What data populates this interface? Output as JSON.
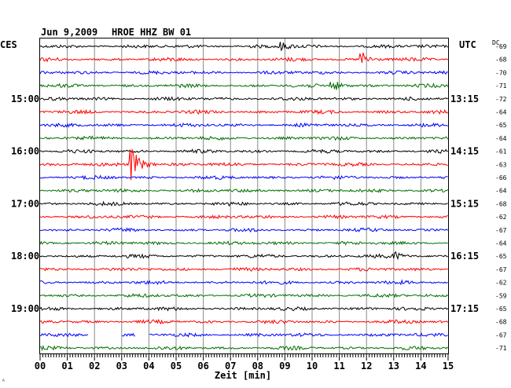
{
  "header": {
    "date": "Jun 9,2009",
    "station": "HROE HHZ BW 01",
    "left_zone": "CES",
    "right_zone": "UTC",
    "dc_label": "DC"
  },
  "chart_data": {
    "type": "line",
    "title": "Jun 9,2009   HROE HHZ BW 01",
    "xlabel": "Zeit [min]",
    "xlim": [
      0,
      15
    ],
    "x_ticks": [
      "00",
      "01",
      "02",
      "03",
      "04",
      "05",
      "06",
      "07",
      "08",
      "09",
      "10",
      "11",
      "12",
      "13",
      "14",
      "15"
    ],
    "trace_count": 24,
    "trace_colors": [
      "#000000",
      "#ff0000",
      "#0000ff",
      "#007000"
    ],
    "left_time_labels": [
      {
        "trace": 4,
        "label": "15:00"
      },
      {
        "trace": 8,
        "label": "16:00"
      },
      {
        "trace": 12,
        "label": "17:00"
      },
      {
        "trace": 16,
        "label": "18:00"
      },
      {
        "trace": 20,
        "label": "19:00"
      }
    ],
    "right_time_labels": [
      {
        "trace": 4,
        "label": "13:15"
      },
      {
        "trace": 8,
        "label": "14:15"
      },
      {
        "trace": 12,
        "label": "15:15"
      },
      {
        "trace": 16,
        "label": "16:15"
      },
      {
        "trace": 20,
        "label": "17:15"
      }
    ],
    "dc_offsets": [
      "-69",
      "-68",
      "-70",
      "-71",
      "-72",
      "-64",
      "-65",
      "-64",
      "-61",
      "-63",
      "-66",
      "-64",
      "-68",
      "-62",
      "-67",
      "-64",
      "-65",
      "-67",
      "-62",
      "-59",
      "-65",
      "-68",
      "-67",
      "-71"
    ],
    "events": [
      {
        "trace": 0,
        "minute": 8.8,
        "amplitude": 0.35
      },
      {
        "trace": 1,
        "minute": 11.8,
        "amplitude": 0.6
      },
      {
        "trace": 3,
        "minute": 10.7,
        "amplitude": 0.55
      },
      {
        "trace": 9,
        "minute": 3.3,
        "amplitude": 1.6
      },
      {
        "trace": 16,
        "minute": 13.0,
        "amplitude": 0.3
      }
    ],
    "gaps": [
      {
        "trace": 22,
        "from": 1.8,
        "to": 3.0
      },
      {
        "trace": 22,
        "from": 3.5,
        "to": 4.0
      }
    ]
  },
  "footer_mark": "ᴬ"
}
